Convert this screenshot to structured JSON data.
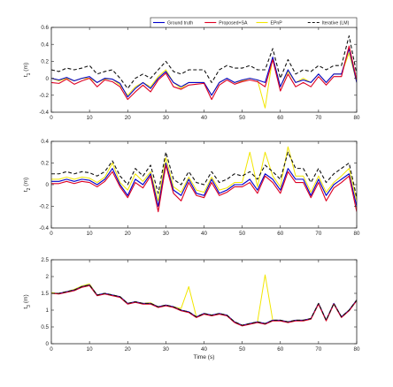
{
  "chart_data": [
    {
      "type": "line",
      "ylabel": "t_1 (m)",
      "ylabel_sub": "1",
      "xlabel": "",
      "xlim": [
        0,
        80
      ],
      "ylim": [
        -0.4,
        0.6
      ],
      "xticks": [
        0,
        10,
        20,
        30,
        40,
        50,
        60,
        70,
        80
      ],
      "yticks": [
        -0.4,
        -0.2,
        0,
        0.2,
        0.4,
        0.6
      ],
      "grid": false,
      "legend": {
        "placement": "top-right",
        "entries": [
          {
            "name": "Ground truth",
            "color": "#0000cc",
            "style": "solid"
          },
          {
            "name": "Proposed+SA",
            "color": "#dd0022",
            "style": "solid"
          },
          {
            "name": "EPnP",
            "color": "#f2e600",
            "style": "solid"
          },
          {
            "name": "Iterative (LM)",
            "color": "#111111",
            "style": "dashed"
          }
        ]
      },
      "x": [
        0,
        2,
        4,
        6,
        8,
        10,
        12,
        14,
        16,
        18,
        20,
        22,
        24,
        26,
        28,
        30,
        32,
        34,
        36,
        38,
        40,
        42,
        44,
        46,
        48,
        50,
        52,
        54,
        56,
        58,
        60,
        62,
        64,
        66,
        68,
        70,
        72,
        74,
        76,
        78,
        80
      ],
      "series": [
        {
          "name": "Ground truth",
          "values": [
            0.0,
            -0.02,
            0.01,
            -0.03,
            0.0,
            0.02,
            -0.05,
            0.0,
            -0.01,
            -0.06,
            -0.22,
            -0.12,
            -0.05,
            -0.12,
            0.0,
            0.08,
            -0.05,
            -0.1,
            -0.05,
            -0.05,
            -0.05,
            -0.2,
            -0.05,
            0.0,
            -0.05,
            -0.02,
            0.0,
            -0.02,
            -0.05,
            0.25,
            -0.1,
            0.1,
            -0.05,
            -0.02,
            -0.05,
            0.05,
            -0.05,
            0.05,
            0.05,
            0.35,
            -0.05
          ]
        },
        {
          "name": "Proposed+SA",
          "values": [
            -0.05,
            -0.06,
            -0.01,
            -0.07,
            -0.03,
            0.0,
            -0.1,
            -0.02,
            -0.04,
            -0.1,
            -0.25,
            -0.16,
            -0.08,
            -0.16,
            -0.02,
            0.06,
            -0.1,
            -0.13,
            -0.08,
            -0.07,
            -0.06,
            -0.25,
            -0.08,
            -0.02,
            -0.07,
            -0.04,
            -0.02,
            -0.04,
            -0.1,
            0.22,
            -0.15,
            0.05,
            -0.1,
            -0.05,
            -0.1,
            0.02,
            -0.08,
            0.02,
            0.02,
            0.38,
            -0.02
          ]
        },
        {
          "name": "EPnP",
          "values": [
            0.0,
            -0.03,
            0.0,
            -0.03,
            0.0,
            0.0,
            -0.05,
            -0.01,
            -0.01,
            -0.08,
            -0.2,
            -0.1,
            -0.05,
            -0.1,
            0.02,
            0.1,
            -0.05,
            -0.12,
            -0.05,
            -0.05,
            -0.05,
            -0.2,
            -0.05,
            0.0,
            -0.05,
            -0.03,
            0.0,
            -0.02,
            -0.35,
            0.25,
            -0.1,
            0.08,
            -0.05,
            0.0,
            -0.05,
            0.05,
            -0.05,
            0.05,
            0.05,
            0.3,
            -0.05
          ]
        },
        {
          "name": "Iterative (LM)",
          "values": [
            0.1,
            0.08,
            0.12,
            0.1,
            0.12,
            0.15,
            0.05,
            0.08,
            0.1,
            0.0,
            -0.12,
            0.0,
            0.05,
            0.0,
            0.1,
            0.2,
            0.08,
            0.05,
            0.1,
            0.1,
            0.1,
            -0.05,
            0.1,
            0.15,
            0.12,
            0.12,
            0.15,
            0.1,
            0.1,
            0.35,
            0.0,
            0.22,
            0.05,
            0.1,
            0.08,
            0.15,
            0.1,
            0.15,
            0.15,
            0.5,
            0.05
          ]
        }
      ]
    },
    {
      "type": "line",
      "ylabel": "t_2 (m)",
      "ylabel_sub": "2",
      "xlabel": "",
      "xlim": [
        0,
        80
      ],
      "ylim": [
        -0.4,
        0.4
      ],
      "xticks": [
        0,
        10,
        20,
        30,
        40,
        50,
        60,
        70,
        80
      ],
      "yticks": [
        -0.4,
        -0.2,
        0,
        0.2,
        0.4
      ],
      "grid": false,
      "x": [
        0,
        2,
        4,
        6,
        8,
        10,
        12,
        14,
        16,
        18,
        20,
        22,
        24,
        26,
        28,
        30,
        32,
        34,
        36,
        38,
        40,
        42,
        44,
        46,
        48,
        50,
        52,
        54,
        56,
        58,
        60,
        62,
        64,
        66,
        68,
        70,
        72,
        74,
        76,
        78,
        80
      ],
      "series": [
        {
          "name": "Ground truth",
          "values": [
            0.03,
            0.03,
            0.05,
            0.03,
            0.05,
            0.04,
            0.0,
            0.05,
            0.15,
            0.0,
            -0.1,
            0.05,
            0.0,
            0.1,
            -0.2,
            0.2,
            -0.05,
            -0.1,
            0.05,
            -0.08,
            -0.1,
            0.05,
            -0.08,
            -0.05,
            0.0,
            0.0,
            0.05,
            -0.05,
            0.1,
            0.05,
            -0.05,
            0.15,
            0.05,
            0.05,
            -0.1,
            0.05,
            -0.1,
            0.0,
            0.05,
            0.1,
            -0.2
          ]
        },
        {
          "name": "Proposed+SA",
          "values": [
            0.01,
            0.01,
            0.03,
            0.01,
            0.03,
            0.02,
            -0.02,
            0.03,
            0.12,
            -0.02,
            -0.12,
            0.02,
            -0.03,
            0.08,
            -0.25,
            0.18,
            -0.08,
            -0.15,
            0.02,
            -0.1,
            -0.12,
            0.02,
            -0.1,
            -0.07,
            -0.02,
            -0.02,
            0.02,
            -0.08,
            0.08,
            0.02,
            -0.08,
            0.12,
            0.02,
            0.02,
            -0.12,
            0.02,
            -0.15,
            -0.03,
            0.02,
            0.08,
            -0.25
          ]
        },
        {
          "name": "EPnP",
          "values": [
            0.05,
            0.05,
            0.07,
            0.05,
            0.07,
            0.06,
            0.02,
            0.07,
            0.2,
            0.02,
            -0.05,
            0.1,
            0.03,
            0.12,
            -0.15,
            0.25,
            -0.02,
            -0.07,
            0.07,
            -0.05,
            -0.07,
            0.07,
            -0.05,
            -0.03,
            0.02,
            0.02,
            0.3,
            -0.02,
            0.3,
            0.08,
            -0.02,
            0.35,
            0.08,
            0.08,
            -0.07,
            0.08,
            -0.07,
            0.02,
            0.08,
            0.15,
            -0.15
          ]
        },
        {
          "name": "Iterative (LM)",
          "values": [
            0.1,
            0.1,
            0.12,
            0.1,
            0.12,
            0.11,
            0.08,
            0.12,
            0.22,
            0.08,
            0.0,
            0.15,
            0.08,
            0.18,
            -0.08,
            0.3,
            0.05,
            0.0,
            0.12,
            0.02,
            0.0,
            0.12,
            0.02,
            0.05,
            0.1,
            0.08,
            0.12,
            0.05,
            0.18,
            0.12,
            0.05,
            0.3,
            0.15,
            0.15,
            0.02,
            0.15,
            0.02,
            0.1,
            0.15,
            0.2,
            -0.12
          ]
        }
      ]
    },
    {
      "type": "line",
      "ylabel": "t_3 (m)",
      "ylabel_sub": "3",
      "xlabel": "Time (s)",
      "xlim": [
        0,
        80
      ],
      "ylim": [
        0,
        2.5
      ],
      "xticks": [
        0,
        10,
        20,
        30,
        40,
        50,
        60,
        70,
        80
      ],
      "yticks": [
        0,
        0.5,
        1,
        1.5,
        2,
        2.5
      ],
      "grid": false,
      "x": [
        0,
        2,
        4,
        6,
        8,
        10,
        12,
        14,
        16,
        18,
        20,
        22,
        24,
        26,
        28,
        30,
        32,
        34,
        36,
        38,
        40,
        42,
        44,
        46,
        48,
        50,
        52,
        54,
        56,
        58,
        60,
        62,
        64,
        66,
        68,
        70,
        72,
        74,
        76,
        78,
        80
      ],
      "series": [
        {
          "name": "Ground truth",
          "values": [
            1.5,
            1.5,
            1.55,
            1.6,
            1.7,
            1.75,
            1.45,
            1.5,
            1.45,
            1.4,
            1.2,
            1.25,
            1.2,
            1.2,
            1.1,
            1.15,
            1.1,
            1.0,
            0.95,
            0.8,
            0.9,
            0.85,
            0.9,
            0.85,
            0.65,
            0.55,
            0.6,
            0.65,
            0.6,
            0.7,
            0.7,
            0.65,
            0.7,
            0.7,
            0.75,
            1.2,
            0.7,
            1.2,
            0.8,
            1.0,
            1.3
          ]
        },
        {
          "name": "Proposed+SA",
          "values": [
            1.5,
            1.48,
            1.53,
            1.58,
            1.68,
            1.73,
            1.43,
            1.48,
            1.43,
            1.38,
            1.18,
            1.23,
            1.18,
            1.18,
            1.08,
            1.13,
            1.08,
            0.98,
            0.93,
            0.78,
            0.88,
            0.83,
            0.88,
            0.83,
            0.63,
            0.53,
            0.58,
            0.63,
            0.58,
            0.68,
            0.68,
            0.63,
            0.68,
            0.68,
            0.73,
            1.18,
            0.68,
            1.18,
            0.78,
            0.98,
            1.28
          ]
        },
        {
          "name": "EPnP",
          "values": [
            1.52,
            1.5,
            1.55,
            1.62,
            1.72,
            1.78,
            1.45,
            1.5,
            1.45,
            1.4,
            1.2,
            1.25,
            1.2,
            1.22,
            1.1,
            1.15,
            1.1,
            1.05,
            1.7,
            0.8,
            0.9,
            0.85,
            0.9,
            0.85,
            0.65,
            0.55,
            0.6,
            0.65,
            2.05,
            0.7,
            0.7,
            0.65,
            0.7,
            0.7,
            0.75,
            1.2,
            0.7,
            1.2,
            0.8,
            1.0,
            1.3
          ]
        },
        {
          "name": "Iterative (LM)",
          "values": [
            1.5,
            1.5,
            1.55,
            1.6,
            1.7,
            1.75,
            1.45,
            1.5,
            1.45,
            1.4,
            1.2,
            1.25,
            1.2,
            1.2,
            1.1,
            1.15,
            1.1,
            1.0,
            0.95,
            0.8,
            0.9,
            0.85,
            0.9,
            0.85,
            0.65,
            0.55,
            0.6,
            0.65,
            0.6,
            0.7,
            0.7,
            0.65,
            0.7,
            0.7,
            0.75,
            1.2,
            0.7,
            1.2,
            0.8,
            1.0,
            1.3
          ]
        }
      ]
    }
  ],
  "colors": {
    "ground_truth": "#0000cc",
    "proposed": "#dd0022",
    "epnp": "#f2e600",
    "iterative": "#111111"
  }
}
